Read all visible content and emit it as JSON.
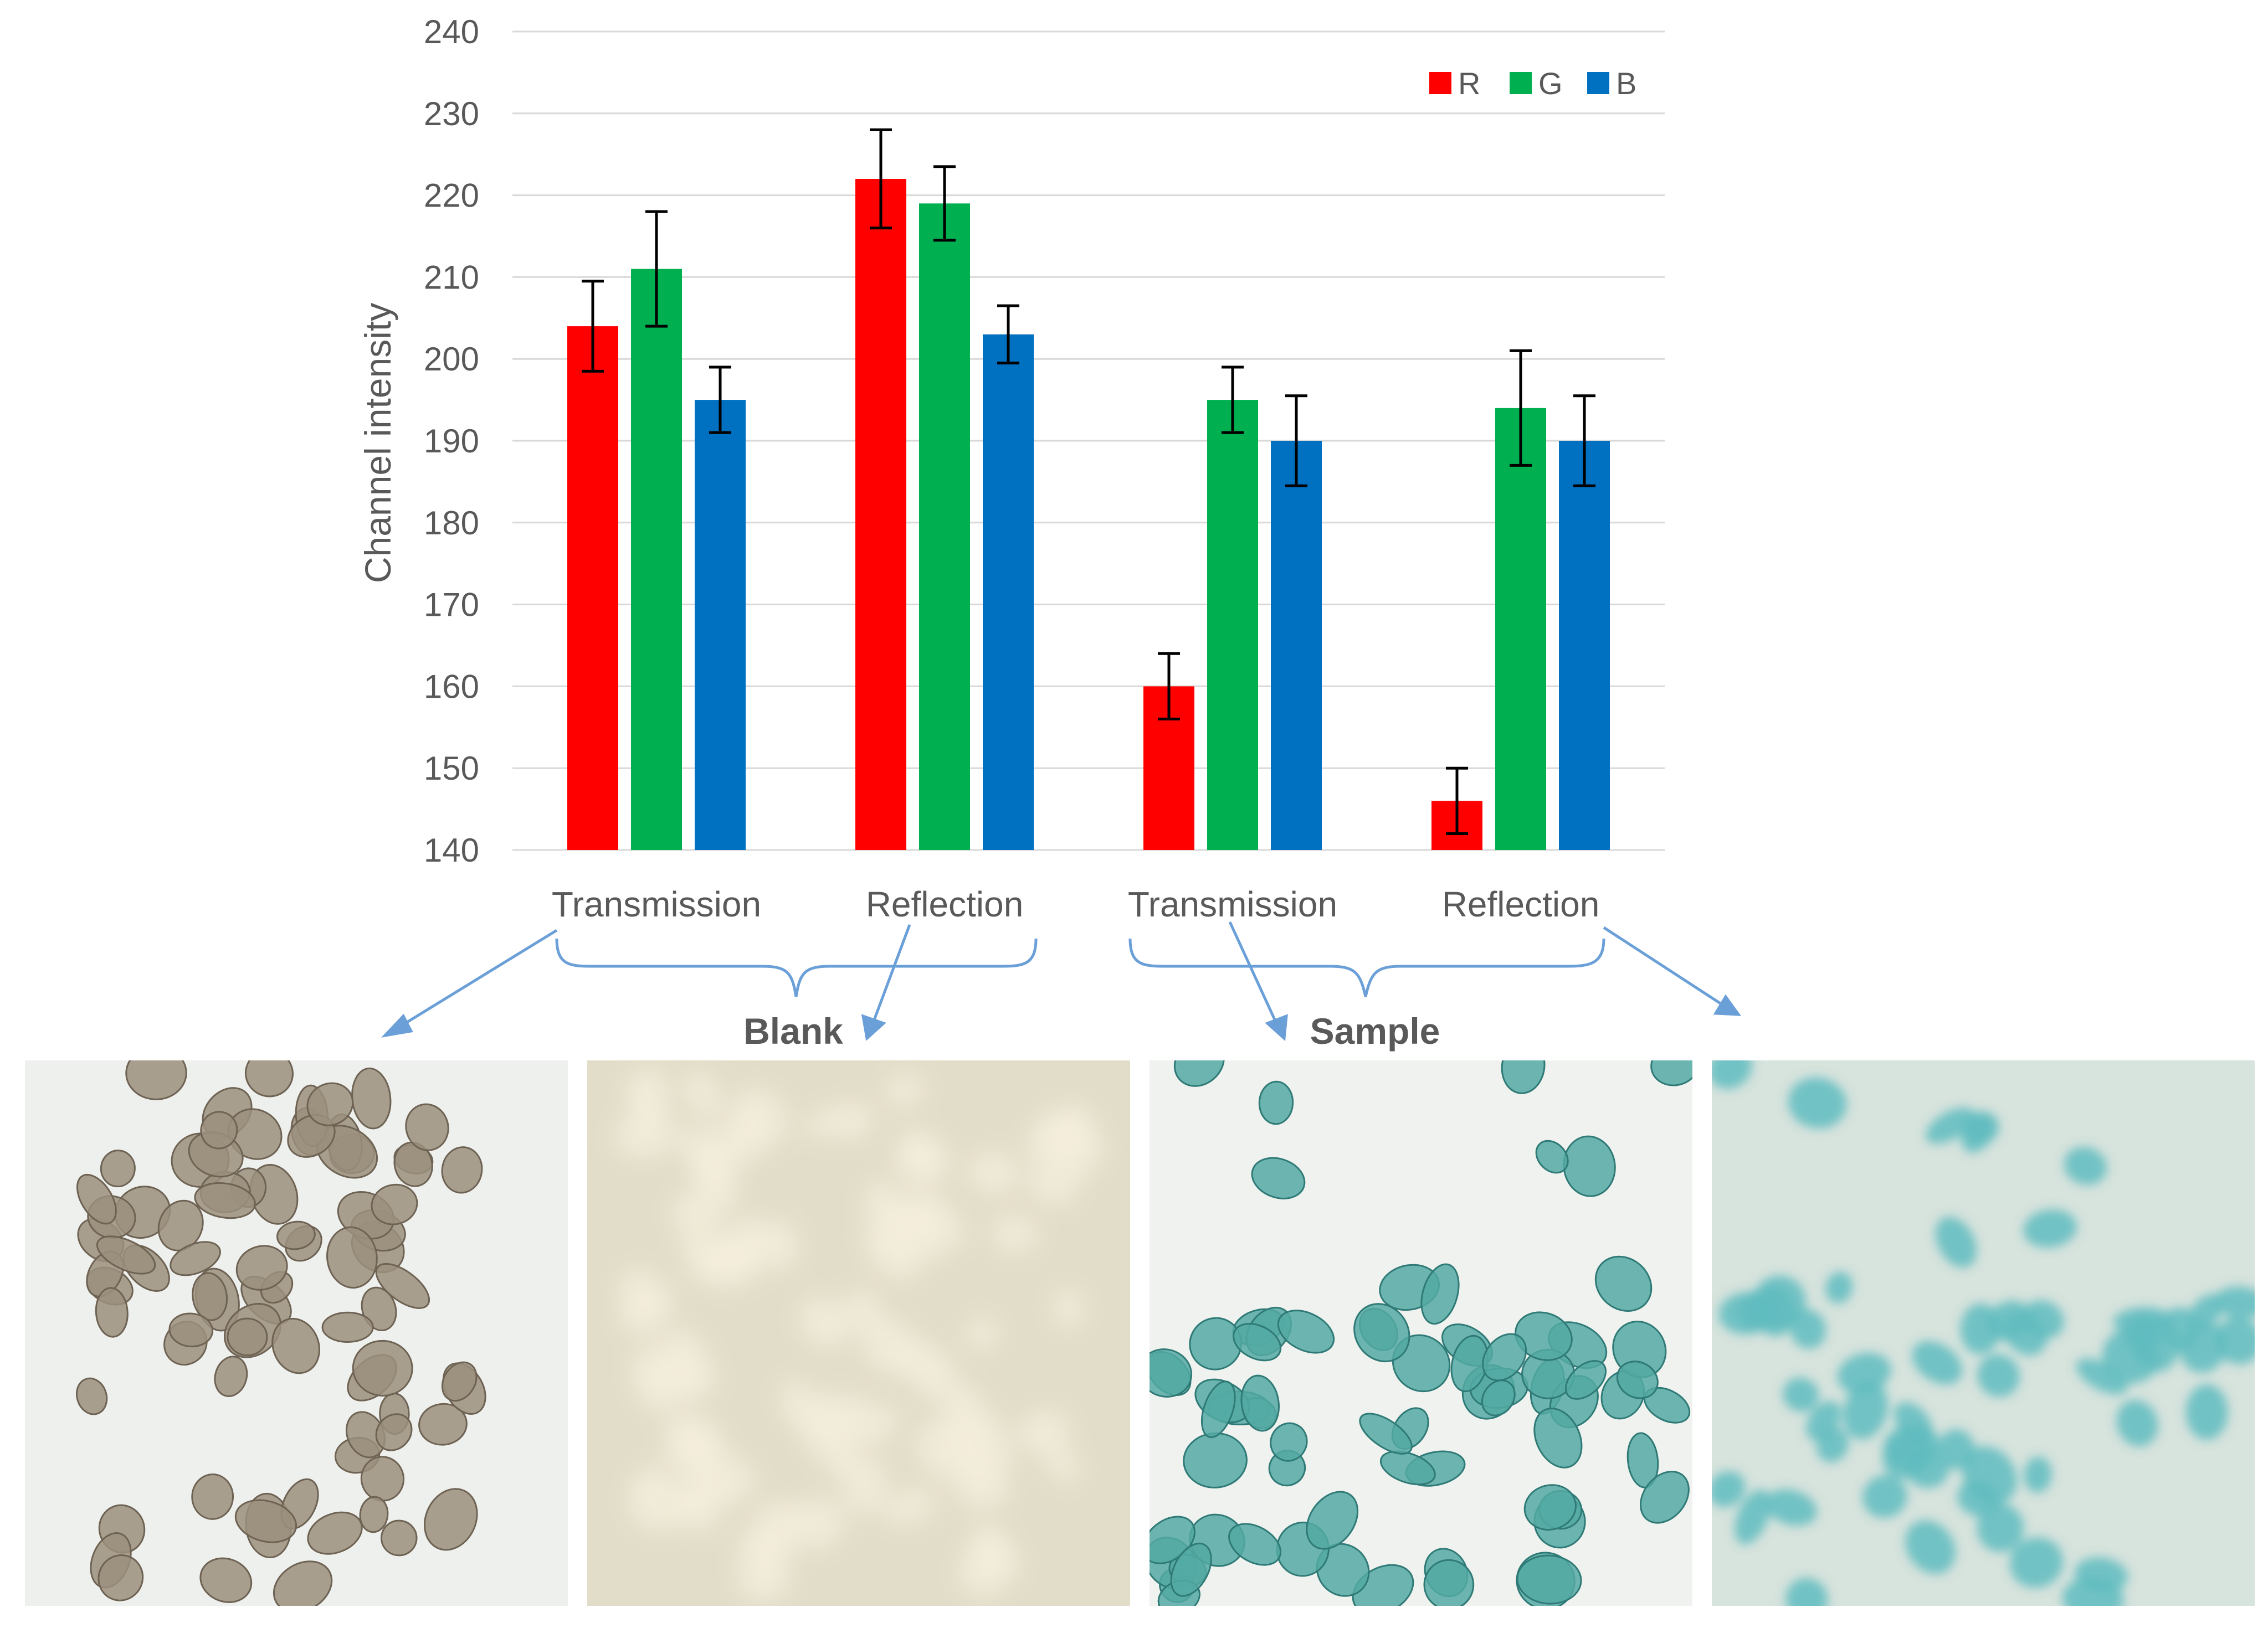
{
  "chart_data": {
    "type": "bar",
    "categories": [
      "Transmission",
      "Reflection",
      "Transmission",
      "Reflection"
    ],
    "groups": [
      "Blank",
      "Sample"
    ],
    "ylabel": "Channel intensity",
    "ylim": [
      140,
      240
    ],
    "yticks": [
      140,
      150,
      160,
      170,
      180,
      190,
      200,
      210,
      220,
      230,
      240
    ],
    "grid": true,
    "legend_position": "top-right",
    "series": [
      {
        "name": "R",
        "color": "#ff0000",
        "values": [
          204,
          222,
          160,
          146
        ],
        "errors": [
          5.5,
          6,
          4,
          4
        ]
      },
      {
        "name": "G",
        "color": "#00b050",
        "values": [
          211,
          219,
          195,
          194
        ],
        "errors": [
          7,
          4.5,
          4,
          7
        ]
      },
      {
        "name": "B",
        "color": "#0070c0",
        "values": [
          195,
          203,
          190,
          190
        ],
        "errors": [
          4,
          3.5,
          5.5,
          5.5
        ]
      }
    ]
  },
  "photos": [
    {
      "name": "blank-transmission",
      "background": "#eef0ee",
      "particle_color": "#9b8f7c"
    },
    {
      "name": "blank-reflection",
      "background": "#e2ddc9",
      "particle_color": "#f4eedc"
    },
    {
      "name": "sample-transmission",
      "background": "#eff2ef",
      "particle_color": "#54a9a3"
    },
    {
      "name": "sample-reflection",
      "background": "#d7e3dd",
      "particle_color": "#5fbcc0"
    }
  ]
}
